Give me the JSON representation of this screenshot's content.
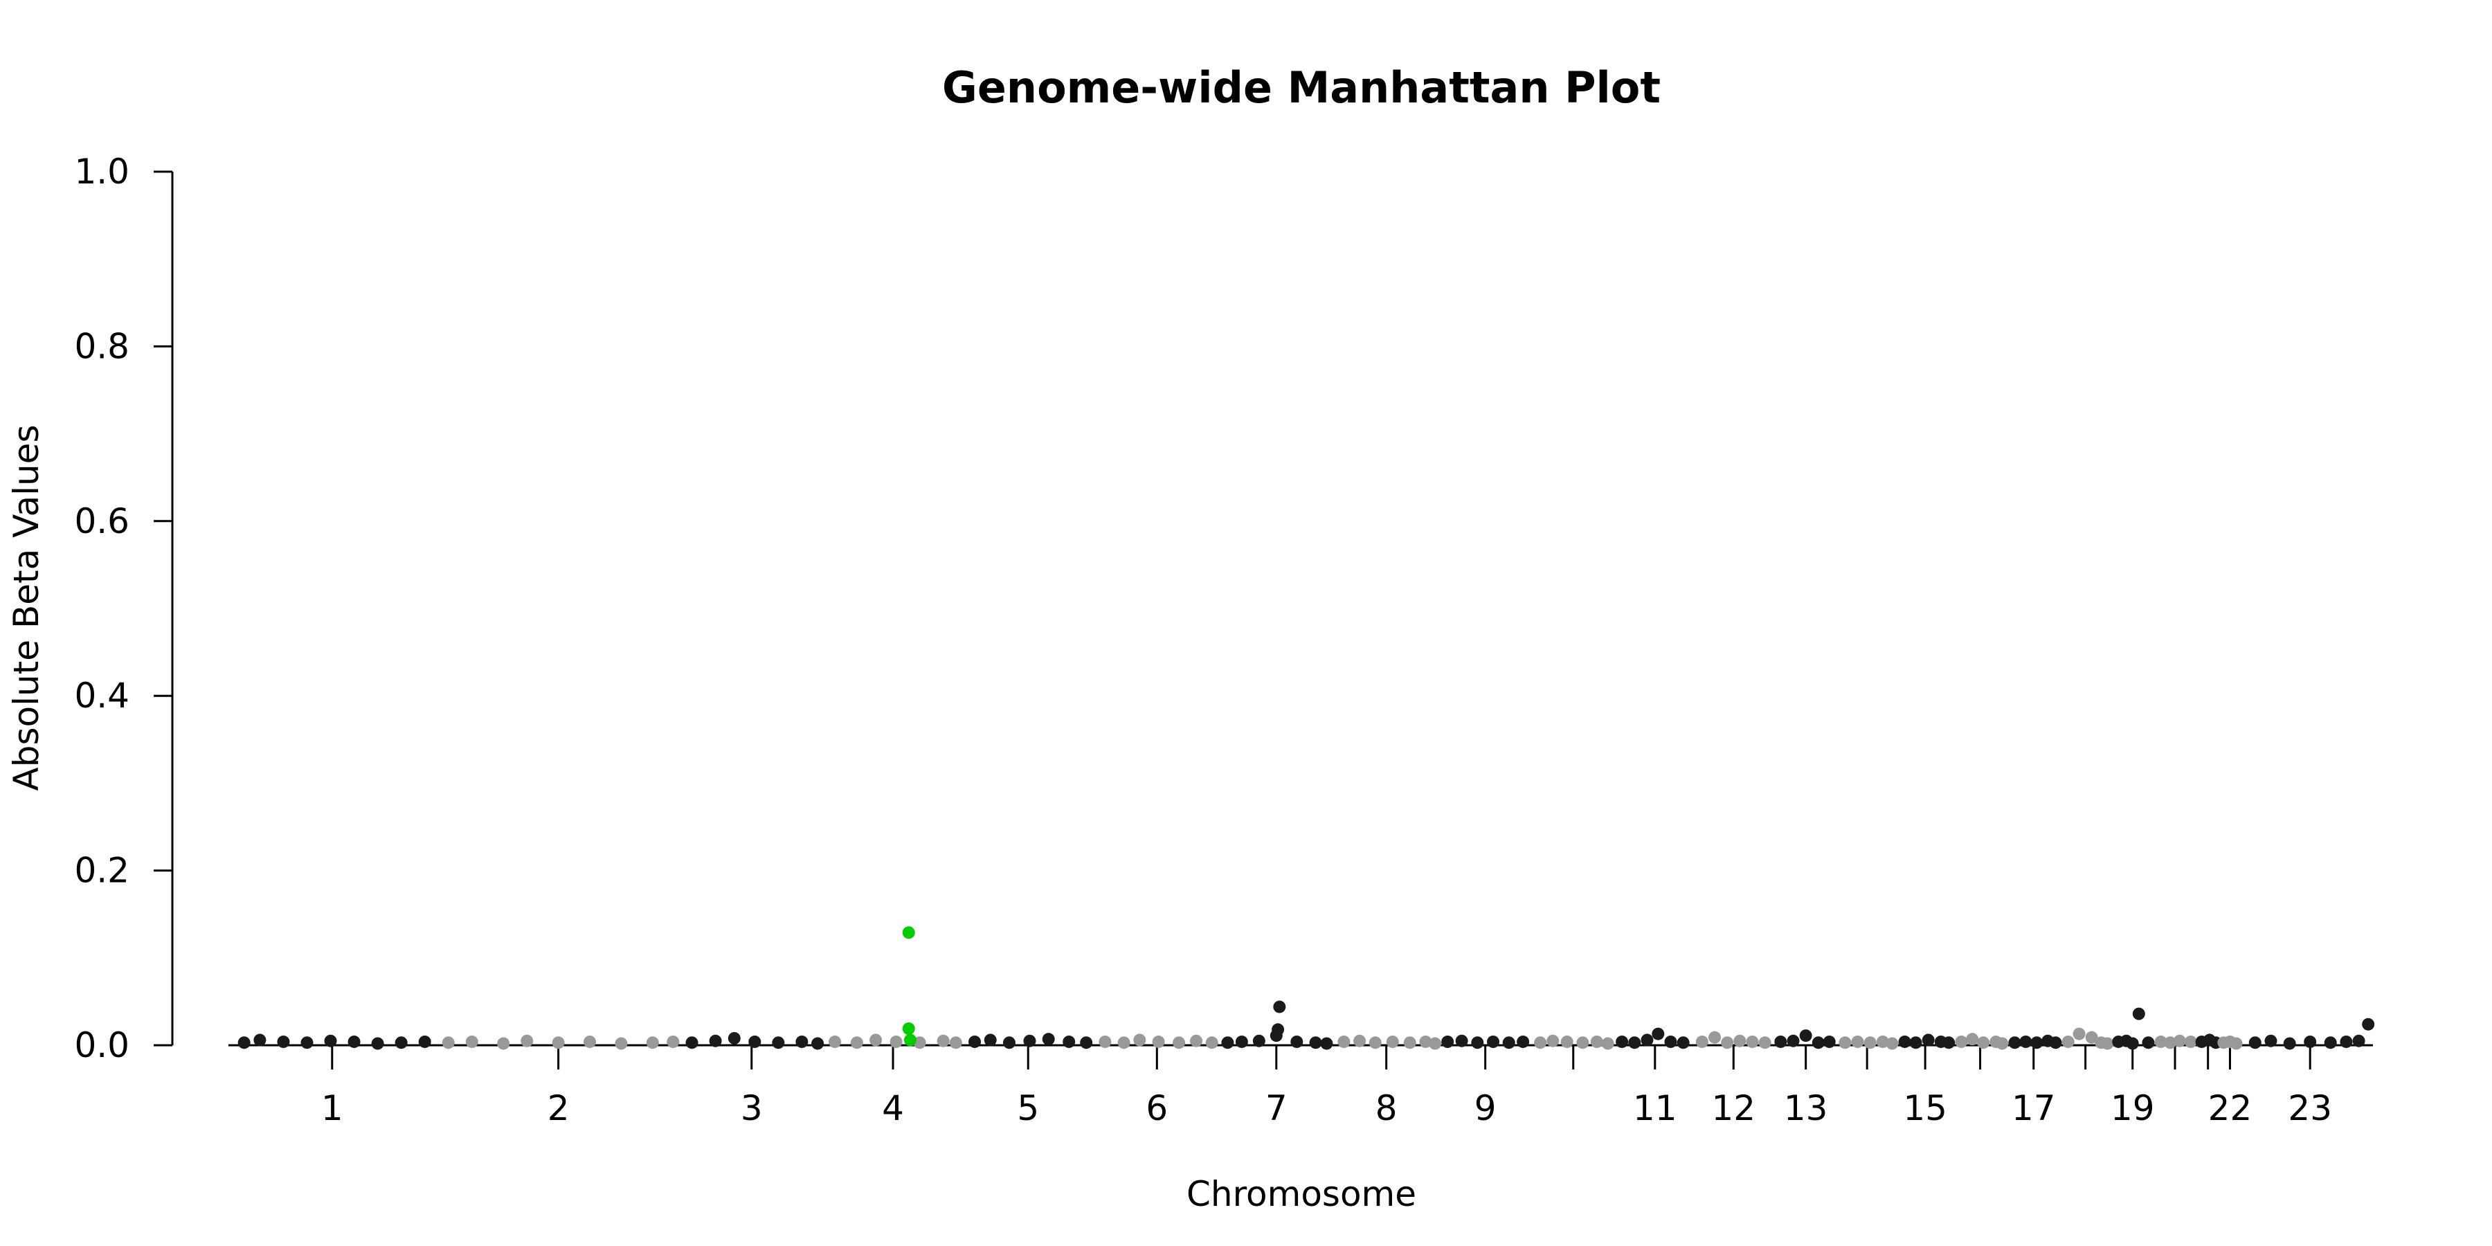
{
  "chart_data": {
    "type": "scatter",
    "title": "Genome-wide Manhattan Plot",
    "xlabel": "Chromosome",
    "ylabel": "Absolute Beta Values",
    "ylim": [
      0,
      1
    ],
    "yticks": [
      "0.0",
      "0.2",
      "0.4",
      "0.6",
      "0.8",
      "1.0"
    ],
    "grid": false,
    "legend": "none",
    "colors": {
      "odd_chromosome": "#1a1a1a",
      "even_chromosome": "#999999",
      "highlight": "#00cc00"
    },
    "chromosomes": [
      {
        "label": "1",
        "start": 0.0,
        "end": 0.132,
        "tick": 0.066,
        "shade": "odd",
        "points": [
          [
            0.01,
            0.003
          ],
          [
            0.02,
            0.006
          ],
          [
            0.035,
            0.004
          ],
          [
            0.05,
            0.003
          ],
          [
            0.065,
            0.005
          ],
          [
            0.08,
            0.004
          ],
          [
            0.095,
            0.002
          ],
          [
            0.11,
            0.003
          ],
          [
            0.125,
            0.004
          ]
        ]
      },
      {
        "label": "2",
        "start": 0.132,
        "end": 0.287,
        "tick": 0.21,
        "shade": "even",
        "points": [
          [
            0.14,
            0.003
          ],
          [
            0.155,
            0.004
          ],
          [
            0.175,
            0.002
          ],
          [
            0.19,
            0.005
          ],
          [
            0.21,
            0.003
          ],
          [
            0.23,
            0.004
          ],
          [
            0.25,
            0.002
          ],
          [
            0.27,
            0.003
          ],
          [
            0.283,
            0.004
          ]
        ]
      },
      {
        "label": "3",
        "start": 0.287,
        "end": 0.379,
        "tick": 0.333,
        "shade": "odd",
        "points": [
          [
            0.295,
            0.003
          ],
          [
            0.31,
            0.005
          ],
          [
            0.322,
            0.008
          ],
          [
            0.335,
            0.004
          ],
          [
            0.35,
            0.003
          ],
          [
            0.365,
            0.004
          ],
          [
            0.375,
            0.002
          ]
        ]
      },
      {
        "label": "4",
        "start": 0.379,
        "end": 0.467,
        "tick": 0.423,
        "shade": "even",
        "points": [
          [
            0.386,
            0.004
          ],
          [
            0.4,
            0.003
          ],
          [
            0.412,
            0.006
          ],
          [
            0.425,
            0.004
          ],
          [
            0.44,
            0.003
          ],
          [
            0.455,
            0.005
          ],
          [
            0.463,
            0.003
          ]
        ]
      },
      {
        "label": "5",
        "start": 0.467,
        "end": 0.551,
        "tick": 0.509,
        "shade": "odd",
        "points": [
          [
            0.475,
            0.004
          ],
          [
            0.485,
            0.006
          ],
          [
            0.497,
            0.003
          ],
          [
            0.51,
            0.005
          ],
          [
            0.522,
            0.007
          ],
          [
            0.535,
            0.004
          ],
          [
            0.546,
            0.003
          ]
        ]
      },
      {
        "label": "6",
        "start": 0.551,
        "end": 0.63,
        "tick": 0.591,
        "shade": "even",
        "points": [
          [
            0.558,
            0.004
          ],
          [
            0.57,
            0.003
          ],
          [
            0.58,
            0.006
          ],
          [
            0.592,
            0.004
          ],
          [
            0.605,
            0.003
          ],
          [
            0.616,
            0.005
          ],
          [
            0.626,
            0.003
          ]
        ]
      },
      {
        "label": "7",
        "start": 0.63,
        "end": 0.703,
        "tick": 0.667,
        "shade": "odd",
        "points": [
          [
            0.636,
            0.003
          ],
          [
            0.645,
            0.004
          ],
          [
            0.656,
            0.005
          ],
          [
            0.667,
            0.011
          ],
          [
            0.668,
            0.018
          ],
          [
            0.669,
            0.044
          ],
          [
            0.68,
            0.004
          ],
          [
            0.692,
            0.003
          ],
          [
            0.699,
            0.002
          ]
        ]
      },
      {
        "label": "8",
        "start": 0.703,
        "end": 0.771,
        "tick": 0.737,
        "shade": "even",
        "points": [
          [
            0.71,
            0.004
          ],
          [
            0.72,
            0.005
          ],
          [
            0.73,
            0.003
          ],
          [
            0.741,
            0.004
          ],
          [
            0.752,
            0.003
          ],
          [
            0.762,
            0.004
          ],
          [
            0.768,
            0.002
          ]
        ]
      },
      {
        "label": "9",
        "start": 0.771,
        "end": 0.829,
        "tick": 0.8,
        "shade": "odd",
        "points": [
          [
            0.776,
            0.004
          ],
          [
            0.785,
            0.005
          ],
          [
            0.795,
            0.003
          ],
          [
            0.805,
            0.004
          ],
          [
            0.815,
            0.003
          ],
          [
            0.824,
            0.004
          ]
        ]
      },
      {
        "label": "",
        "start": 0.829,
        "end": 0.882,
        "tick": 0.856,
        "shade": "even",
        "points": [
          [
            0.835,
            0.003
          ],
          [
            0.843,
            0.005
          ],
          [
            0.852,
            0.004
          ],
          [
            0.862,
            0.003
          ],
          [
            0.871,
            0.004
          ],
          [
            0.878,
            0.002
          ]
        ]
      },
      {
        "label": "11",
        "start": 0.882,
        "end": 0.933,
        "tick": 0.908,
        "shade": "odd",
        "points": [
          [
            0.887,
            0.004
          ],
          [
            0.895,
            0.003
          ],
          [
            0.903,
            0.006
          ],
          [
            0.91,
            0.013
          ],
          [
            0.918,
            0.004
          ],
          [
            0.926,
            0.003
          ]
        ]
      },
      {
        "label": "12",
        "start": 0.933,
        "end": 0.983,
        "tick": 0.958,
        "shade": "even",
        "points": [
          [
            0.938,
            0.004
          ],
          [
            0.946,
            0.009
          ],
          [
            0.954,
            0.003
          ],
          [
            0.962,
            0.005
          ],
          [
            0.97,
            0.004
          ],
          [
            0.978,
            0.003
          ]
        ]
      },
      {
        "label": "13",
        "start": 0.983,
        "end": 1.024,
        "tick": 1.004,
        "shade": "odd",
        "points": [
          [
            0.988,
            0.004
          ],
          [
            0.996,
            0.005
          ],
          [
            1.004,
            0.011
          ],
          [
            1.012,
            0.003
          ],
          [
            1.019,
            0.004
          ]
        ]
      },
      {
        "label": "",
        "start": 1.024,
        "end": 1.062,
        "tick": 1.043,
        "shade": "even",
        "points": [
          [
            1.029,
            0.003
          ],
          [
            1.037,
            0.004
          ],
          [
            1.045,
            0.003
          ],
          [
            1.053,
            0.004
          ],
          [
            1.059,
            0.002
          ]
        ]
      },
      {
        "label": "15",
        "start": 1.062,
        "end": 1.098,
        "tick": 1.08,
        "shade": "odd",
        "points": [
          [
            1.067,
            0.004
          ],
          [
            1.074,
            0.003
          ],
          [
            1.082,
            0.006
          ],
          [
            1.09,
            0.004
          ],
          [
            1.095,
            0.003
          ]
        ]
      },
      {
        "label": "",
        "start": 1.098,
        "end": 1.132,
        "tick": 1.115,
        "shade": "even",
        "points": [
          [
            1.103,
            0.004
          ],
          [
            1.11,
            0.007
          ],
          [
            1.117,
            0.003
          ],
          [
            1.125,
            0.004
          ],
          [
            1.129,
            0.002
          ]
        ]
      },
      {
        "label": "17",
        "start": 1.132,
        "end": 1.166,
        "tick": 1.149,
        "shade": "odd",
        "points": [
          [
            1.137,
            0.003
          ],
          [
            1.144,
            0.004
          ],
          [
            1.151,
            0.003
          ],
          [
            1.158,
            0.005
          ],
          [
            1.163,
            0.003
          ]
        ]
      },
      {
        "label": "",
        "start": 1.166,
        "end": 1.199,
        "tick": 1.182,
        "shade": "even",
        "points": [
          [
            1.171,
            0.004
          ],
          [
            1.178,
            0.013
          ],
          [
            1.186,
            0.009
          ],
          [
            1.192,
            0.003
          ],
          [
            1.196,
            0.002
          ]
        ]
      },
      {
        "label": "19",
        "start": 1.199,
        "end": 1.226,
        "tick": 1.212,
        "shade": "odd",
        "points": [
          [
            1.203,
            0.004
          ],
          [
            1.208,
            0.005
          ],
          [
            1.212,
            0.002
          ],
          [
            1.216,
            0.036
          ],
          [
            1.222,
            0.003
          ]
        ]
      },
      {
        "label": "",
        "start": 1.226,
        "end": 1.253,
        "tick": 1.239,
        "shade": "even",
        "points": [
          [
            1.23,
            0.004
          ],
          [
            1.236,
            0.003
          ],
          [
            1.242,
            0.005
          ],
          [
            1.249,
            0.004
          ]
        ]
      },
      {
        "label": "",
        "start": 1.253,
        "end": 1.267,
        "tick": 1.26,
        "shade": "odd",
        "points": [
          [
            1.256,
            0.004
          ],
          [
            1.261,
            0.006
          ],
          [
            1.265,
            0.003
          ]
        ]
      },
      {
        "label": "22",
        "start": 1.267,
        "end": 1.281,
        "tick": 1.274,
        "shade": "even",
        "points": [
          [
            1.27,
            0.003
          ],
          [
            1.274,
            0.004
          ],
          [
            1.278,
            0.002
          ]
        ]
      },
      {
        "label": "23",
        "start": 1.281,
        "end": 1.365,
        "tick": 1.325,
        "shade": "odd",
        "points": [
          [
            1.29,
            0.003
          ],
          [
            1.3,
            0.005
          ],
          [
            1.312,
            0.002
          ],
          [
            1.325,
            0.004
          ],
          [
            1.338,
            0.003
          ],
          [
            1.348,
            0.004
          ],
          [
            1.356,
            0.005
          ],
          [
            1.362,
            0.024
          ]
        ]
      }
    ],
    "highlighted": [
      [
        0.433,
        0.129
      ],
      [
        0.433,
        0.019
      ],
      [
        0.434,
        0.006
      ]
    ]
  }
}
